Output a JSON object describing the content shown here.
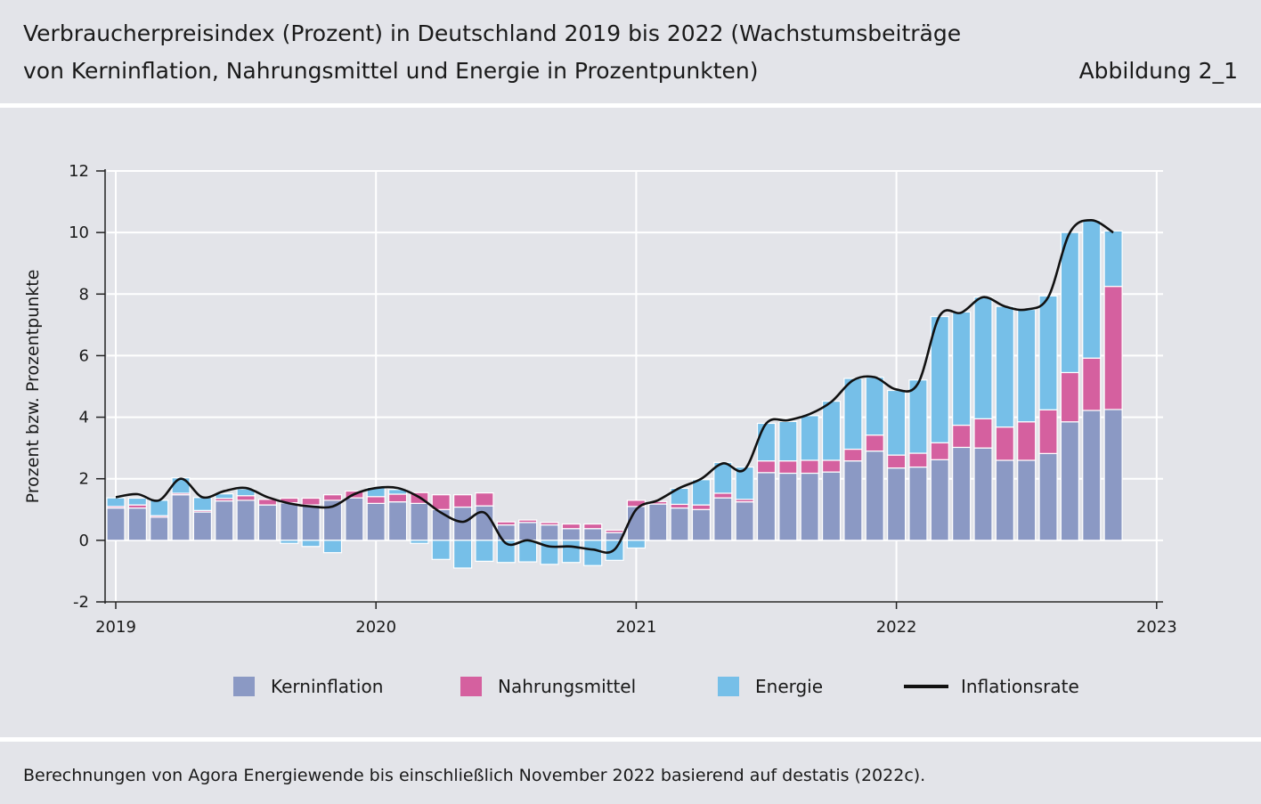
{
  "header": {
    "title_line1": "Verbraucherpreisindex (Prozent) in Deutschland 2019 bis 2022 (Wachstumsbeiträge",
    "title_line2": "von Kerninflation, Nahrungsmittel und Energie in Prozentpunkten)",
    "figure_label": "Abbildung 2_1"
  },
  "footer": {
    "note": "Berechnungen von Agora Energiewende bis einschließlich November 2022 basierend auf destatis (2022c)."
  },
  "colors": {
    "kern": "#8b99c4",
    "nahrung": "#d5609f",
    "energie": "#76bfe8",
    "line": "#111111",
    "grid": "#ffffff"
  },
  "legend": [
    {
      "label": "Kerninflation",
      "key": "kern",
      "kind": "box"
    },
    {
      "label": "Nahrungsmittel",
      "key": "nahrung",
      "kind": "box"
    },
    {
      "label": "Energie",
      "key": "energie",
      "kind": "box"
    },
    {
      "label": "Inflationsrate",
      "key": "line",
      "kind": "line"
    }
  ],
  "chart_data": {
    "type": "bar",
    "stacked": true,
    "ylabel": "Prozent bzw. Prozentpunkte",
    "xlabel": "",
    "ylim": [
      -2,
      12
    ],
    "yticks": [
      -2,
      0,
      2,
      4,
      6,
      8,
      10,
      12
    ],
    "xticks": [
      "2019",
      "2020",
      "2021",
      "2022",
      "2023"
    ],
    "grid": true,
    "legend_position": "bottom",
    "months": [
      "2019-01",
      "2019-02",
      "2019-03",
      "2019-04",
      "2019-05",
      "2019-06",
      "2019-07",
      "2019-08",
      "2019-09",
      "2019-10",
      "2019-11",
      "2019-12",
      "2020-01",
      "2020-02",
      "2020-03",
      "2020-04",
      "2020-05",
      "2020-06",
      "2020-07",
      "2020-08",
      "2020-09",
      "2020-10",
      "2020-11",
      "2020-12",
      "2021-01",
      "2021-02",
      "2021-03",
      "2021-04",
      "2021-05",
      "2021-06",
      "2021-07",
      "2021-08",
      "2021-09",
      "2021-10",
      "2021-11",
      "2021-12",
      "2022-01",
      "2022-02",
      "2022-03",
      "2022-04",
      "2022-05",
      "2022-06",
      "2022-07",
      "2022-08",
      "2022-09",
      "2022-10",
      "2022-11"
    ],
    "series": [
      {
        "name": "Kerninflation",
        "key": "kern",
        "values": [
          1.05,
          1.05,
          0.75,
          1.48,
          0.92,
          1.28,
          1.3,
          1.15,
          1.22,
          1.15,
          1.3,
          1.38,
          1.2,
          1.25,
          1.2,
          1.0,
          1.08,
          1.12,
          0.5,
          0.58,
          0.5,
          0.38,
          0.38,
          0.25,
          1.1,
          1.18,
          1.05,
          1.0,
          1.38,
          1.25,
          2.2,
          2.18,
          2.18,
          2.22,
          2.58,
          2.9,
          2.35,
          2.38,
          2.62,
          3.02,
          3.0,
          2.6,
          2.6,
          2.82,
          3.85,
          4.22,
          4.25
        ]
      },
      {
        "name": "Nahrungsmittel",
        "key": "nahrung",
        "values": [
          0.05,
          0.1,
          0.05,
          0.05,
          0.05,
          0.08,
          0.15,
          0.18,
          0.15,
          0.22,
          0.18,
          0.22,
          0.22,
          0.25,
          0.35,
          0.48,
          0.4,
          0.42,
          0.1,
          0.08,
          0.08,
          0.15,
          0.15,
          0.08,
          0.2,
          0.08,
          0.12,
          0.15,
          0.15,
          0.08,
          0.38,
          0.4,
          0.42,
          0.38,
          0.38,
          0.52,
          0.42,
          0.45,
          0.55,
          0.72,
          0.95,
          1.08,
          1.25,
          1.42,
          1.6,
          1.7,
          4.0
        ]
      },
      {
        "name": "Energie",
        "key": "energie",
        "values": [
          0.28,
          0.22,
          0.5,
          0.5,
          0.42,
          0.15,
          0.22,
          0.0,
          -0.1,
          -0.2,
          -0.4,
          0.0,
          0.3,
          0.15,
          -0.1,
          -0.62,
          -0.9,
          -0.68,
          -0.72,
          -0.7,
          -0.78,
          -0.72,
          -0.82,
          -0.65,
          -0.25,
          0.0,
          0.52,
          0.82,
          1.0,
          1.05,
          1.22,
          1.28,
          1.45,
          1.92,
          2.3,
          1.88,
          2.1,
          2.38,
          4.1,
          3.68,
          3.95,
          3.92,
          3.65,
          3.7,
          4.55,
          4.48,
          1.8
        ]
      }
    ],
    "line": {
      "name": "Inflationsrate",
      "values": [
        1.4,
        1.5,
        1.3,
        2.0,
        1.4,
        1.6,
        1.7,
        1.4,
        1.2,
        1.1,
        1.1,
        1.5,
        1.7,
        1.7,
        1.4,
        0.9,
        0.6,
        0.9,
        -0.1,
        0.0,
        -0.2,
        -0.2,
        -0.3,
        -0.3,
        1.0,
        1.3,
        1.7,
        2.0,
        2.5,
        2.3,
        3.8,
        3.9,
        4.1,
        4.5,
        5.2,
        5.3,
        4.9,
        5.1,
        7.3,
        7.4,
        7.9,
        7.6,
        7.5,
        7.9,
        10.0,
        10.4,
        10.0
      ]
    }
  }
}
